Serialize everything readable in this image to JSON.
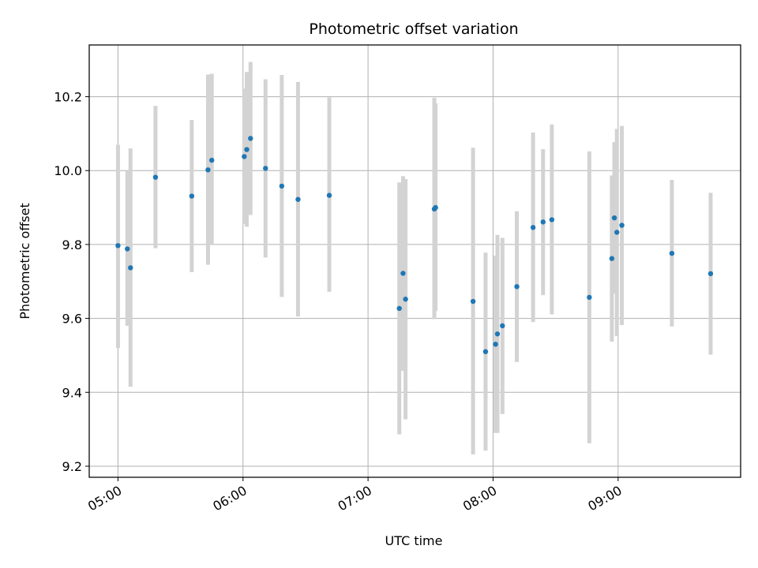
{
  "chart_data": {
    "type": "scatter",
    "title": "Photometric offset variation",
    "xlabel": "UTC time",
    "ylabel": "Photometric offset",
    "x_unit": "hours (UTC)",
    "xlim": [
      4.77,
      9.98
    ],
    "ylim": [
      9.17,
      10.34
    ],
    "x_ticks": [
      {
        "value": 5,
        "label": "05:00"
      },
      {
        "value": 6,
        "label": "06:00"
      },
      {
        "value": 7,
        "label": "07:00"
      },
      {
        "value": 8,
        "label": "08:00"
      },
      {
        "value": 9,
        "label": "09:00"
      }
    ],
    "y_ticks": [
      {
        "value": 9.2,
        "label": "9.2"
      },
      {
        "value": 9.4,
        "label": "9.4"
      },
      {
        "value": 9.6,
        "label": "9.6"
      },
      {
        "value": 9.8,
        "label": "9.8"
      },
      {
        "value": 10.0,
        "label": "10.0"
      },
      {
        "value": 10.2,
        "label": "10.2"
      }
    ],
    "grid": true,
    "colors": {
      "points": "#1f77b4",
      "errorbars": "#d3d3d3",
      "grid": "#b0b0b0"
    },
    "points": [
      {
        "x": 5.0,
        "y": 9.797,
        "lo": 9.52,
        "hi": 10.07
      },
      {
        "x": 5.075,
        "y": 9.788,
        "lo": 9.58,
        "hi": 10.0
      },
      {
        "x": 5.1,
        "y": 9.737,
        "lo": 9.415,
        "hi": 10.06
      },
      {
        "x": 5.3,
        "y": 9.982,
        "lo": 9.79,
        "hi": 10.175
      },
      {
        "x": 5.59,
        "y": 9.931,
        "lo": 9.725,
        "hi": 10.137
      },
      {
        "x": 5.72,
        "y": 10.002,
        "lo": 9.745,
        "hi": 10.26
      },
      {
        "x": 5.75,
        "y": 10.028,
        "lo": 9.8,
        "hi": 10.262
      },
      {
        "x": 6.01,
        "y": 10.038,
        "lo": 9.855,
        "hi": 10.222
      },
      {
        "x": 6.03,
        "y": 10.057,
        "lo": 9.848,
        "hi": 10.267
      },
      {
        "x": 6.06,
        "y": 10.087,
        "lo": 9.88,
        "hi": 10.294
      },
      {
        "x": 6.18,
        "y": 10.006,
        "lo": 9.765,
        "hi": 10.247
      },
      {
        "x": 6.31,
        "y": 9.958,
        "lo": 9.658,
        "hi": 10.259
      },
      {
        "x": 6.44,
        "y": 9.922,
        "lo": 9.605,
        "hi": 10.24
      },
      {
        "x": 6.69,
        "y": 9.933,
        "lo": 9.672,
        "hi": 10.198
      },
      {
        "x": 7.25,
        "y": 9.627,
        "lo": 9.286,
        "hi": 9.968
      },
      {
        "x": 7.28,
        "y": 9.722,
        "lo": 9.458,
        "hi": 9.985
      },
      {
        "x": 7.3,
        "y": 9.652,
        "lo": 9.327,
        "hi": 9.977
      },
      {
        "x": 7.53,
        "y": 9.896,
        "lo": 9.598,
        "hi": 10.197
      },
      {
        "x": 7.54,
        "y": 9.9,
        "lo": 9.62,
        "hi": 10.182
      },
      {
        "x": 7.84,
        "y": 9.646,
        "lo": 9.232,
        "hi": 10.062
      },
      {
        "x": 7.94,
        "y": 9.51,
        "lo": 9.242,
        "hi": 9.778
      },
      {
        "x": 8.02,
        "y": 9.53,
        "lo": 9.29,
        "hi": 9.77
      },
      {
        "x": 8.035,
        "y": 9.558,
        "lo": 9.29,
        "hi": 9.826
      },
      {
        "x": 8.075,
        "y": 9.58,
        "lo": 9.341,
        "hi": 9.818
      },
      {
        "x": 8.19,
        "y": 9.686,
        "lo": 9.482,
        "hi": 9.89
      },
      {
        "x": 8.32,
        "y": 9.846,
        "lo": 9.59,
        "hi": 10.103
      },
      {
        "x": 8.4,
        "y": 9.861,
        "lo": 9.663,
        "hi": 10.058
      },
      {
        "x": 8.47,
        "y": 9.867,
        "lo": 9.611,
        "hi": 10.125
      },
      {
        "x": 8.77,
        "y": 9.657,
        "lo": 9.262,
        "hi": 10.052
      },
      {
        "x": 8.95,
        "y": 9.762,
        "lo": 9.537,
        "hi": 9.987
      },
      {
        "x": 8.97,
        "y": 9.872,
        "lo": 9.667,
        "hi": 10.077
      },
      {
        "x": 8.99,
        "y": 9.833,
        "lo": 9.552,
        "hi": 10.113
      },
      {
        "x": 9.03,
        "y": 9.852,
        "lo": 9.582,
        "hi": 10.121
      },
      {
        "x": 9.43,
        "y": 9.776,
        "lo": 9.578,
        "hi": 9.975
      },
      {
        "x": 9.74,
        "y": 9.721,
        "lo": 9.502,
        "hi": 9.94
      }
    ]
  }
}
